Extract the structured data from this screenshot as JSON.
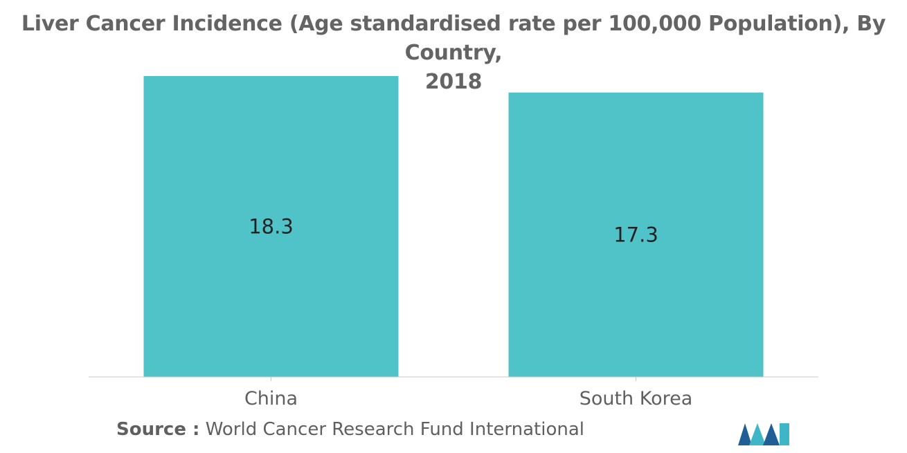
{
  "title_line1": "Liver Cancer Incidence (Age standardised rate per 100,000 Population), By Country,",
  "title_line2": "2018",
  "source_label": "Source :",
  "source_text": "World Cancer Research Fund International",
  "colors": {
    "bar": "#50c3c9",
    "axis": "#c8c8c8",
    "text": "#5f5f5f",
    "logo_dark": "#1f5f95",
    "logo_light": "#3fb6c7"
  },
  "logo_icon": "mordor-intelligence-logo",
  "chart_data": {
    "type": "bar",
    "categories": [
      "China",
      "South Korea"
    ],
    "values": [
      18.3,
      17.3
    ],
    "data_labels": [
      "18.3",
      "17.3"
    ],
    "title": "Liver Cancer Incidence (Age standardised rate per 100,000 Population), By Country, 2018",
    "xlabel": "",
    "ylabel": "",
    "ylim": [
      0,
      18.3
    ],
    "grid": false,
    "legend": "none"
  }
}
